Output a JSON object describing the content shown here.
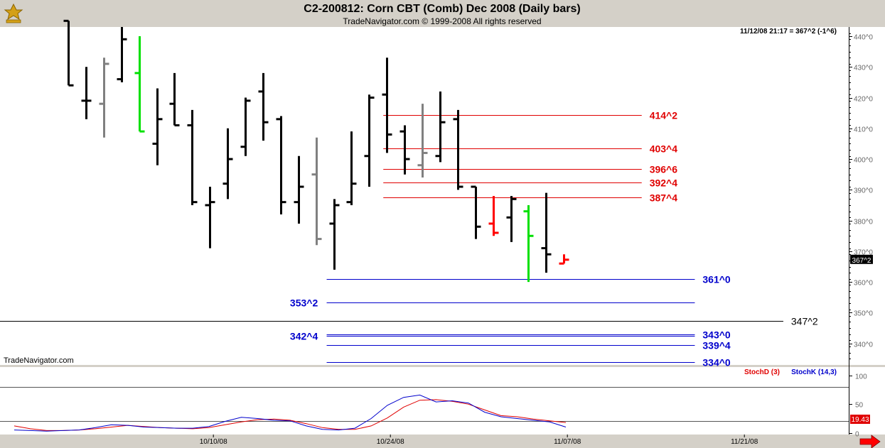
{
  "header": {
    "title": "C2-200812:  Corn CBT (Comb) Dec 2008  (Daily bars)",
    "copyright": "TradeNavigator.com © 1999-2008 All rights reserved",
    "timestamp_readout": "11/12/08 21:17 = 367^2 (-1^6)",
    "watermark": "TradeNavigator.com"
  },
  "colors": {
    "bar": "#000000",
    "bar_gray": "#808080",
    "bar_green": "#00e000",
    "bar_red": "#ff0000",
    "resistance": "#e00000",
    "support": "#0000cc",
    "level": "#000000",
    "stochD": "#e00000",
    "stochK": "#0000cc"
  },
  "chart_data": [
    {
      "type": "ohlc",
      "ylim": [
        333,
        443
      ],
      "y_ticks": [
        {
          "value": 340,
          "label": "340^0"
        },
        {
          "value": 350,
          "label": "350^0"
        },
        {
          "value": 360,
          "label": "360^0"
        },
        {
          "value": 370,
          "label": "370^0"
        },
        {
          "value": 380,
          "label": "380^0"
        },
        {
          "value": 390,
          "label": "390^0"
        },
        {
          "value": 400,
          "label": "400^0"
        },
        {
          "value": 410,
          "label": "410^0"
        },
        {
          "value": 420,
          "label": "420^0"
        },
        {
          "value": 430,
          "label": "430^0"
        },
        {
          "value": 440,
          "label": "440^0"
        }
      ],
      "last_price_label": "367^2",
      "last_price": 367.25,
      "x_labels": [
        "10/10/08",
        "10/24/08",
        "11/07/08",
        "11/21/08"
      ],
      "x_label_index": [
        8.2,
        18.2,
        28.2,
        38.2
      ],
      "bars": [
        {
          "o": 445,
          "h": 445,
          "l": 424,
          "c": 424,
          "color": "bar"
        },
        {
          "o": 419,
          "h": 430,
          "l": 413,
          "c": 419,
          "color": "bar"
        },
        {
          "o": 418,
          "h": 433,
          "l": 407,
          "c": 431,
          "color": "bar_gray"
        },
        {
          "o": 426,
          "h": 443,
          "l": 425,
          "c": 439,
          "color": "bar"
        },
        {
          "o": 428,
          "h": 440,
          "l": 409,
          "c": 409,
          "color": "bar_green"
        },
        {
          "o": 405,
          "h": 423,
          "l": 398,
          "c": 413,
          "color": "bar"
        },
        {
          "o": 418,
          "h": 428,
          "l": 411,
          "c": 411,
          "color": "bar"
        },
        {
          "o": 411,
          "h": 416,
          "l": 385,
          "c": 386,
          "color": "bar"
        },
        {
          "o": 385,
          "h": 391,
          "l": 371,
          "c": 386,
          "color": "bar"
        },
        {
          "o": 392,
          "h": 410,
          "l": 387,
          "c": 400,
          "color": "bar"
        },
        {
          "o": 404,
          "h": 420,
          "l": 401,
          "c": 419,
          "color": "bar"
        },
        {
          "o": 422,
          "h": 428,
          "l": 406,
          "c": 412,
          "color": "bar"
        },
        {
          "o": 413,
          "h": 414,
          "l": 382,
          "c": 386,
          "color": "bar"
        },
        {
          "o": 386,
          "h": 401,
          "l": 379,
          "c": 391,
          "color": "bar"
        },
        {
          "o": 395,
          "h": 407,
          "l": 372,
          "c": 374,
          "color": "bar_gray"
        },
        {
          "o": 379,
          "h": 387,
          "l": 364,
          "c": 385,
          "color": "bar"
        },
        {
          "o": 386,
          "h": 409,
          "l": 385,
          "c": 392,
          "color": "bar"
        },
        {
          "o": 401,
          "h": 421,
          "l": 391,
          "c": 420,
          "color": "bar"
        },
        {
          "o": 421,
          "h": 433,
          "l": 402,
          "c": 408,
          "color": "bar"
        },
        {
          "o": 409,
          "h": 411,
          "l": 395,
          "c": 400,
          "color": "bar"
        },
        {
          "o": 398,
          "h": 418,
          "l": 394,
          "c": 402,
          "color": "bar_gray"
        },
        {
          "o": 401,
          "h": 422,
          "l": 399,
          "c": 412,
          "color": "bar"
        },
        {
          "o": 413,
          "h": 416,
          "l": 390,
          "c": 391,
          "color": "bar"
        },
        {
          "o": 391,
          "h": 391,
          "l": 374,
          "c": 378,
          "color": "bar"
        },
        {
          "o": 379,
          "h": 388,
          "l": 375,
          "c": 376,
          "color": "bar_red"
        },
        {
          "o": 381,
          "h": 388,
          "l": 373,
          "c": 387,
          "color": "bar"
        },
        {
          "o": 383,
          "h": 385,
          "l": 360,
          "c": 375,
          "color": "bar_green"
        },
        {
          "o": 371,
          "h": 389,
          "l": 363,
          "c": 369,
          "color": "bar"
        },
        {
          "o": 366,
          "h": 369,
          "l": 366,
          "c": 367.25,
          "color": "bar_red"
        }
      ],
      "levels": [
        {
          "value": 414.25,
          "label": "414^2",
          "color": "resistance",
          "x_from": 17.8,
          "x_to": 32.4,
          "label_at": 33
        },
        {
          "value": 403.5,
          "label": "403^4",
          "color": "resistance",
          "x_from": 17.8,
          "x_to": 32.4,
          "label_at": 33
        },
        {
          "value": 396.75,
          "label": "396^6",
          "color": "resistance",
          "x_from": 17.8,
          "x_to": 32.4,
          "label_at": 33
        },
        {
          "value": 392.5,
          "label": "392^4",
          "color": "resistance",
          "x_from": 17.8,
          "x_to": 32.4,
          "label_at": 33
        },
        {
          "value": 387.5,
          "label": "387^4",
          "color": "resistance",
          "x_from": 17.8,
          "x_to": 32.4,
          "label_at": 33
        },
        {
          "value": 361,
          "label": "361^0",
          "color": "support",
          "x_from": 14.6,
          "x_to": 35.4,
          "label_at": 36
        },
        {
          "value": 353.25,
          "label": "353^2",
          "color": "support",
          "x_from": 14.6,
          "x_to": 35.4,
          "label_at": 12.5
        },
        {
          "value": 347.25,
          "label": "347^2",
          "color": "level",
          "x_from": -4,
          "x_to": 40.4,
          "label_at": 41
        },
        {
          "value": 343,
          "label": "343^0",
          "color": "support",
          "x_from": 14.6,
          "x_to": 35.4,
          "label_at": 36
        },
        {
          "value": 342.5,
          "label": "342^4",
          "color": "support",
          "x_from": 14.6,
          "x_to": 35.4,
          "label_at": 12.5
        },
        {
          "value": 339.5,
          "label": "339^4",
          "color": "support",
          "x_from": 14.6,
          "x_to": 35.4,
          "label_at": 36
        },
        {
          "value": 334,
          "label": "334^0",
          "color": "support",
          "x_from": 14.6,
          "x_to": 35.4,
          "label_at": 36
        }
      ]
    },
    {
      "type": "line",
      "ylim": [
        -3,
        115
      ],
      "y_ticks": [
        0,
        50,
        100
      ],
      "ref_lines": [
        20,
        80
      ],
      "value_label": "19.43",
      "series": [
        {
          "name": "StochD (3)",
          "color": "stochD",
          "values": [
            12,
            7,
            4,
            4,
            5,
            7,
            10,
            13,
            11,
            9,
            8,
            7,
            9,
            14,
            19,
            23,
            24,
            22,
            16,
            9,
            6,
            6,
            12,
            26,
            45,
            57,
            58,
            55,
            50,
            40,
            30,
            28,
            24,
            21,
            18
          ]
        },
        {
          "name": "StochK (14,3)",
          "color": "stochK",
          "values": [
            5,
            4,
            3,
            4,
            5,
            9,
            14,
            13,
            10,
            9,
            8,
            8,
            11,
            20,
            27,
            25,
            22,
            21,
            12,
            6,
            5,
            8,
            25,
            48,
            62,
            66,
            54,
            56,
            52,
            36,
            28,
            25,
            22,
            19,
            10
          ]
        }
      ]
    }
  ]
}
